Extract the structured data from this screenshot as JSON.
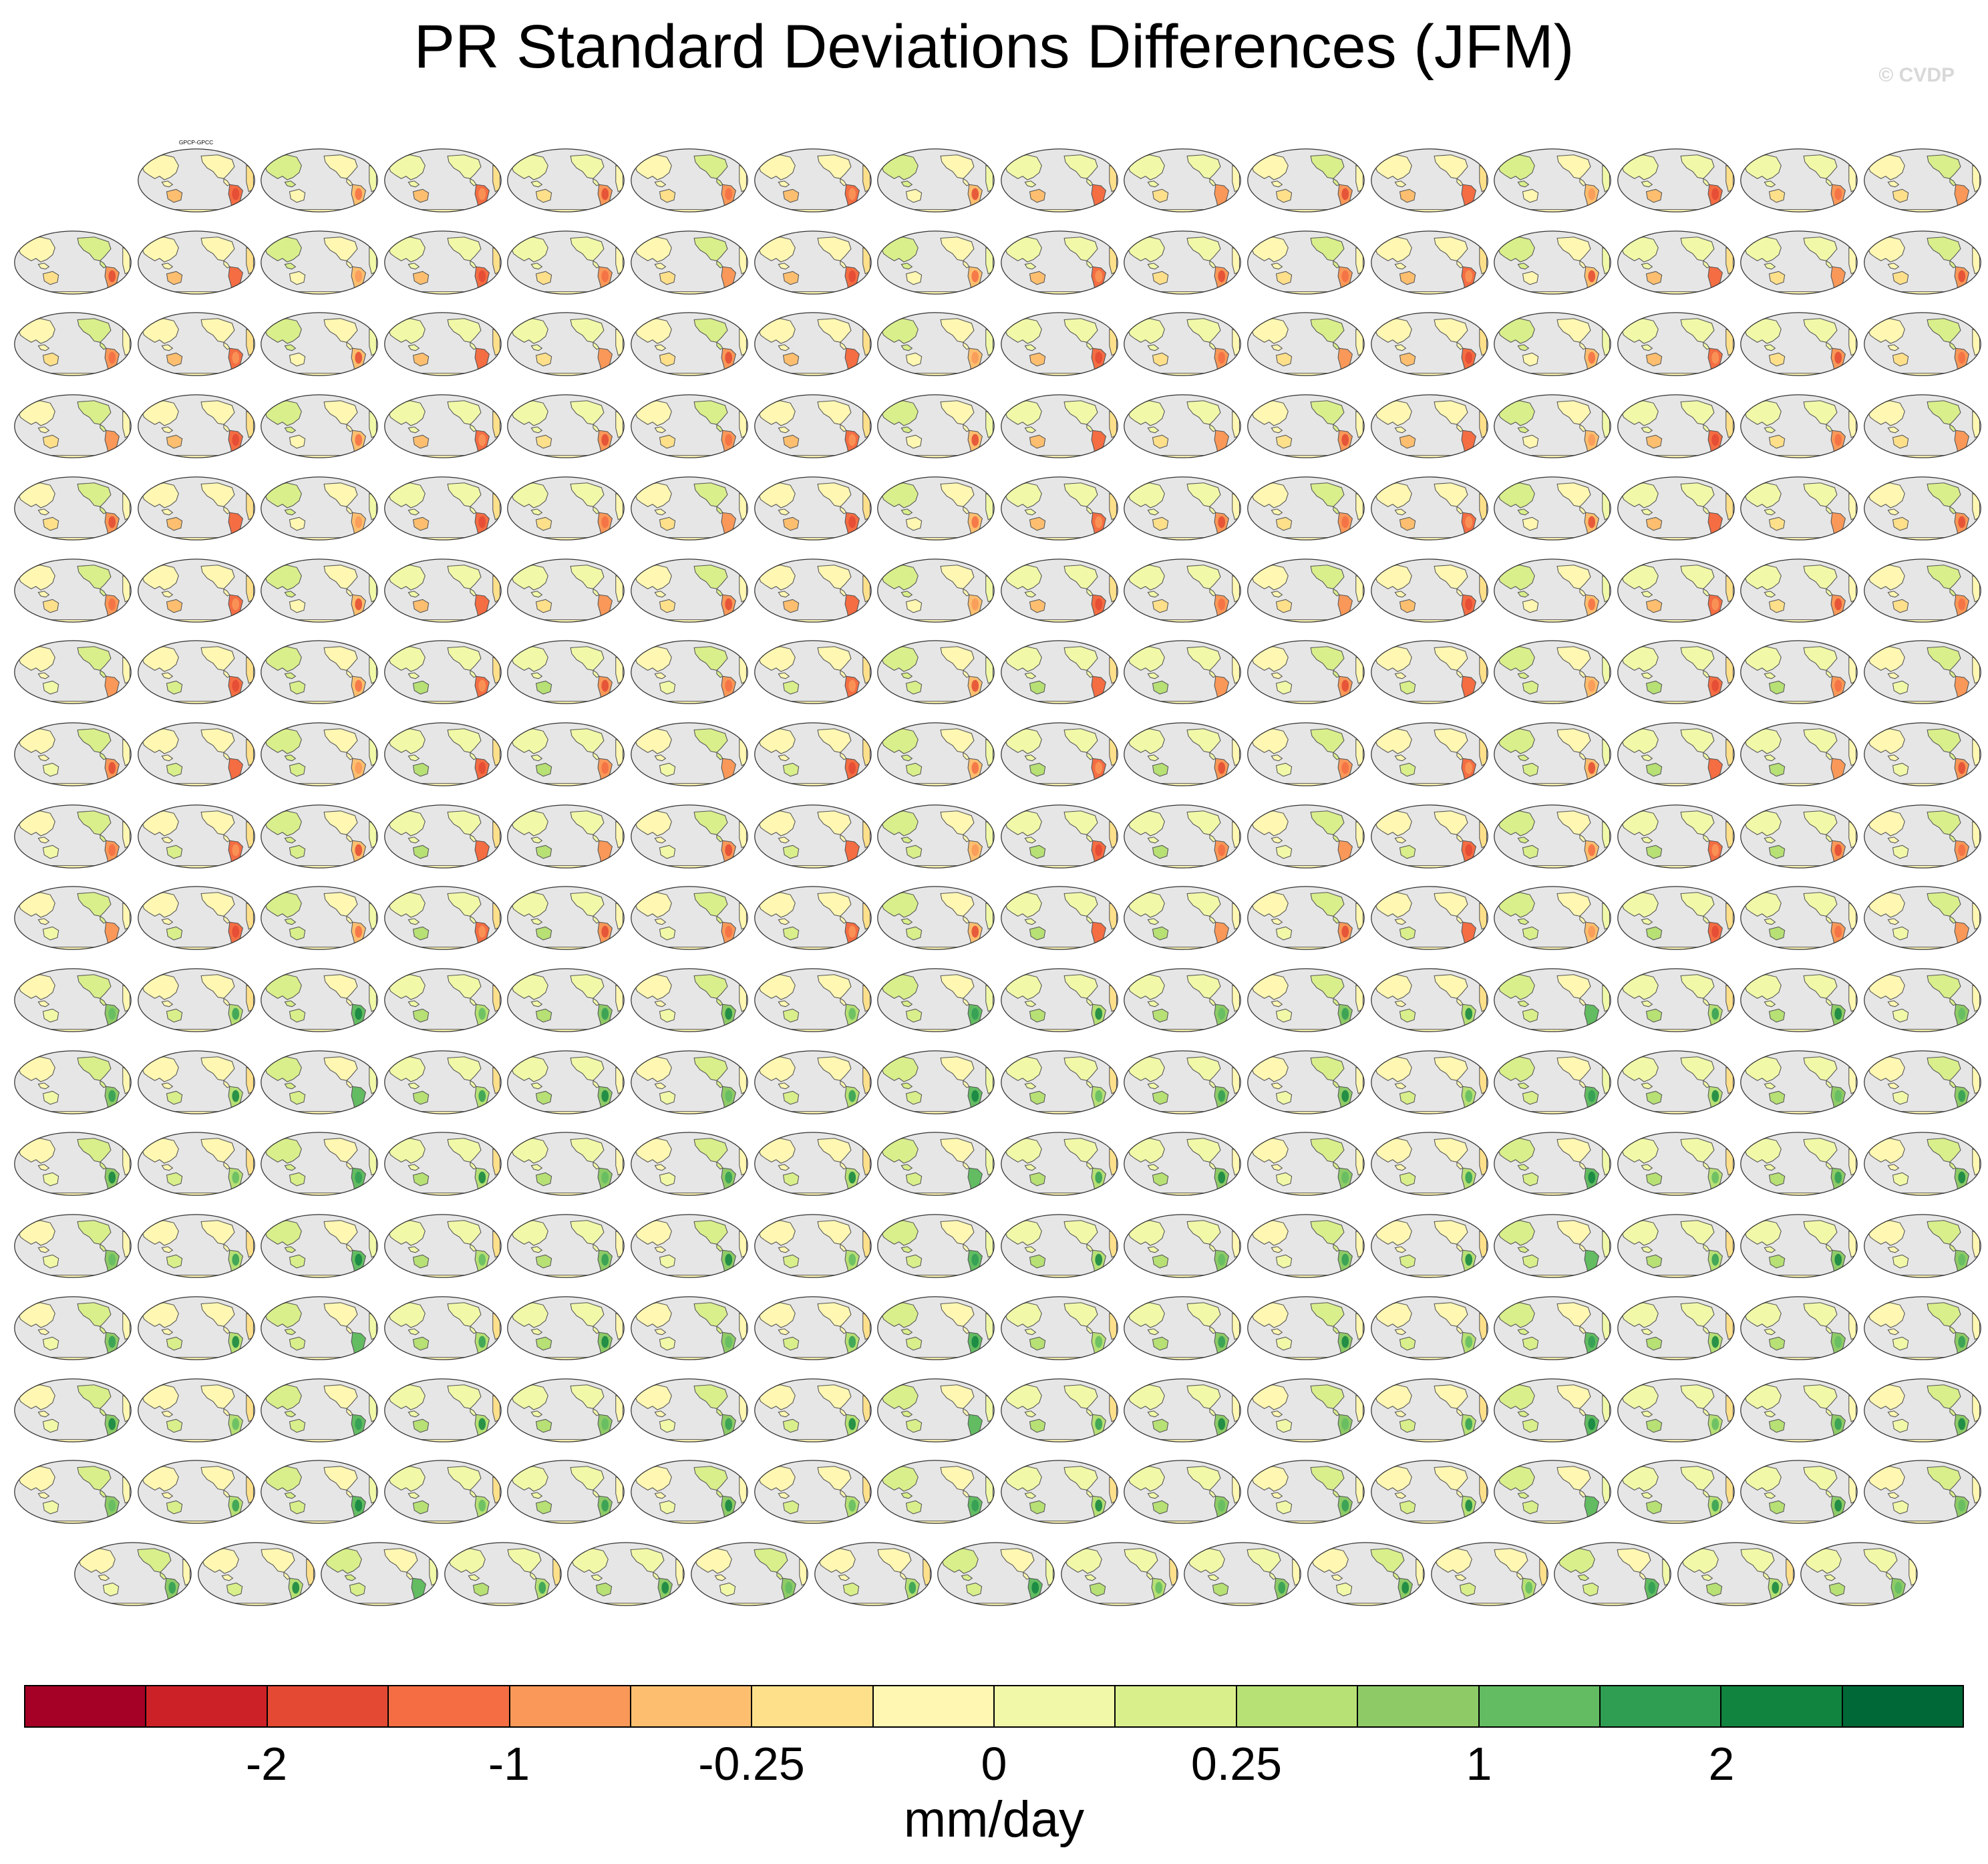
{
  "figure": {
    "title": "PR Standard Deviations Differences (JFM)",
    "watermark": "© CVDP"
  },
  "panels": {
    "rows": 18,
    "columns": 16,
    "first_row_leading_blank": 1,
    "last_row_count": 15,
    "first_panel_label": "GPCP-GPCC",
    "ocean_color": "#e6e6e6",
    "coast_color": "#555555"
  },
  "colorbar": {
    "colors": [
      "#a50026",
      "#cc2127",
      "#e34933",
      "#f46d43",
      "#f99858",
      "#fdbf6f",
      "#fee08b",
      "#fff7b2",
      "#f1f9a8",
      "#d9ef8b",
      "#b7e075",
      "#8ecb67",
      "#63bc62",
      "#2f9e53",
      "#11843f",
      "#006837"
    ],
    "tick_labels": [
      "-2",
      "-1",
      "-0.25",
      "0",
      "0.25",
      "1",
      "2"
    ],
    "tick_boundaries": [
      2,
      4,
      6,
      8,
      10,
      12,
      14
    ],
    "units": "mm/day"
  }
}
